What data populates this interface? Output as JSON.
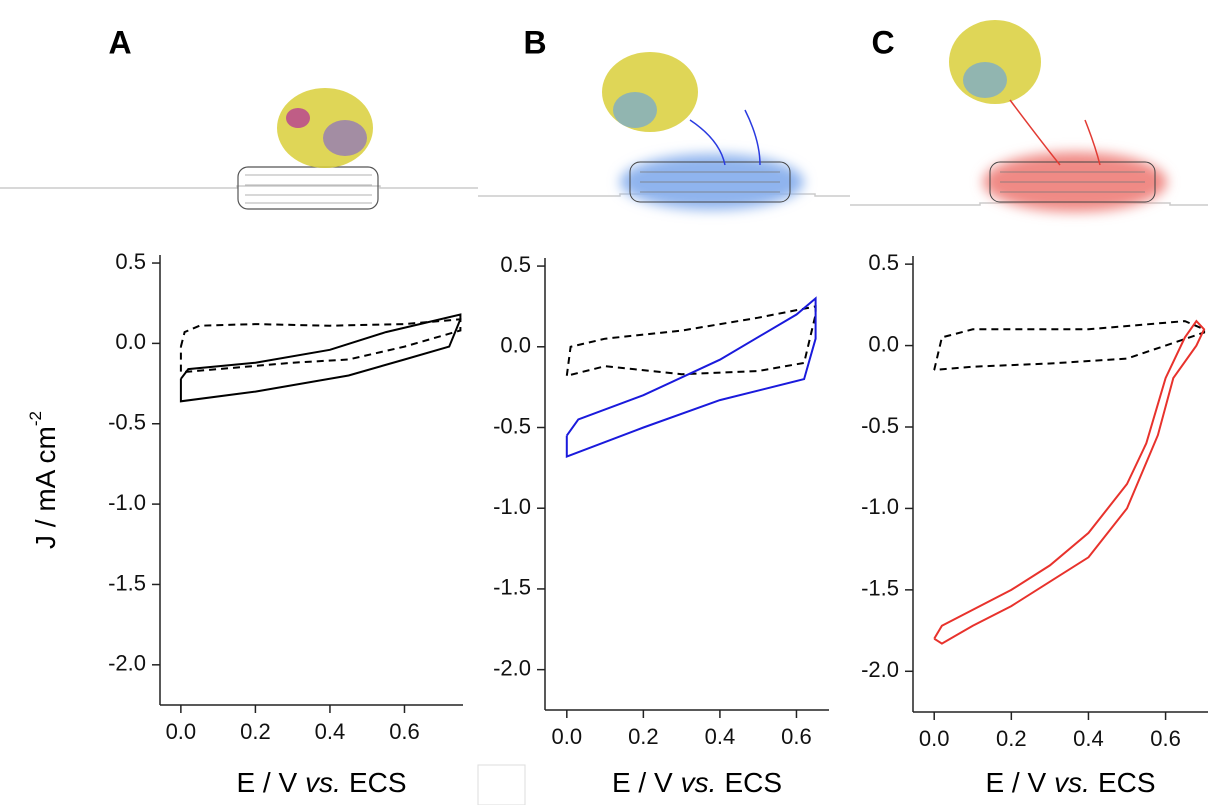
{
  "chart_data": [
    {
      "type": "line",
      "label": "A",
      "y_label": "J / mA cm",
      "y_label_sup": "-2",
      "x_label": [
        "E / V",
        "vs.",
        "ECS"
      ],
      "xlim": [
        -0.056,
        0.757
      ],
      "ylim": [
        -2.25,
        0.55
      ],
      "xticks": [
        {
          "value": 0,
          "label": "0.0"
        },
        0.2,
        0.4,
        0.6
      ],
      "yticks": [
        0.5,
        {
          "value": 0,
          "label": "0.0"
        },
        -0.5,
        {
          "value": -1,
          "label": "-1.0"
        },
        -1.5,
        {
          "value": -2,
          "label": "-2.0"
        }
      ],
      "series": [
        {
          "color": "#000000",
          "line_style": "dashed",
          "x": [
            0,
            0.01,
            0.05,
            0.2,
            0.4,
            0.6,
            0.75,
            0.75,
            0.6,
            0.45,
            0.3,
            0.1,
            0,
            0
          ],
          "values": [
            -0.02,
            0.07,
            0.11,
            0.12,
            0.11,
            0.12,
            0.15,
            0.08,
            -0.02,
            -0.1,
            -0.12,
            -0.16,
            -0.18,
            -0.02
          ]
        },
        {
          "color": "#000000",
          "line_style": "solid",
          "x": [
            0,
            0.02,
            0.2,
            0.4,
            0.55,
            0.75,
            0.75,
            0.72,
            0.6,
            0.45,
            0.2,
            0,
            0
          ],
          "values": [
            -0.22,
            -0.16,
            -0.12,
            -0.04,
            0.07,
            0.18,
            0.15,
            -0.02,
            -0.1,
            -0.2,
            -0.3,
            -0.36,
            -0.22
          ]
        }
      ]
    },
    {
      "type": "line",
      "label": "B",
      "x_label": [
        "E / V",
        "vs.",
        "ECS"
      ],
      "xlim": [
        -0.057,
        0.685
      ],
      "ylim": [
        -2.25,
        0.55
      ],
      "xticks": [
        {
          "value": 0,
          "label": "0.0"
        },
        0.2,
        0.4,
        0.6
      ],
      "yticks": [
        0.5,
        {
          "value": 0,
          "label": "0.0"
        },
        -0.5,
        {
          "value": -1,
          "label": "-1.0"
        },
        -1.5,
        {
          "value": -2,
          "label": "-2.0"
        }
      ],
      "series": [
        {
          "color": "#000000",
          "line_style": "dashed",
          "x": [
            0,
            0.01,
            0.1,
            0.3,
            0.5,
            0.65,
            0.65,
            0.62,
            0.5,
            0.3,
            0.1,
            0
          ],
          "values": [
            -0.18,
            0.0,
            0.05,
            0.1,
            0.18,
            0.25,
            0.2,
            -0.1,
            -0.15,
            -0.17,
            -0.12,
            -0.18
          ]
        },
        {
          "color": "#1a1adc",
          "line_style": "solid",
          "x": [
            0,
            0.03,
            0.2,
            0.4,
            0.6,
            0.65,
            0.65,
            0.62,
            0.4,
            0.2,
            0,
            0
          ],
          "values": [
            -0.55,
            -0.45,
            -0.3,
            -0.08,
            0.2,
            0.3,
            0.05,
            -0.2,
            -0.33,
            -0.5,
            -0.68,
            -0.55
          ]
        }
      ]
    },
    {
      "type": "line",
      "label": "C",
      "x_label": [
        "E / V",
        "vs.",
        "ECS"
      ],
      "xlim": [
        -0.055,
        0.71
      ],
      "ylim": [
        -2.25,
        0.55
      ],
      "xticks": [
        {
          "value": 0,
          "label": "0.0"
        },
        0.2,
        0.4,
        0.6
      ],
      "yticks": [
        0.5,
        {
          "value": 0,
          "label": "0.0"
        },
        -0.5,
        {
          "value": -1,
          "label": "-1.0"
        },
        -1.5,
        {
          "value": -2,
          "label": "-2.0"
        }
      ],
      "series": [
        {
          "color": "#000000",
          "line_style": "dashed",
          "x": [
            0,
            0.02,
            0.1,
            0.4,
            0.65,
            0.7,
            0.7,
            0.5,
            0.3,
            0.1,
            0
          ],
          "values": [
            -0.15,
            0.05,
            0.1,
            0.1,
            0.15,
            0.1,
            0.08,
            -0.08,
            -0.11,
            -0.13,
            -0.15
          ]
        },
        {
          "color": "#e8322c",
          "line_style": "solid",
          "x": [
            0,
            0.02,
            0.2,
            0.3,
            0.4,
            0.5,
            0.55,
            0.6,
            0.65,
            0.68,
            0.7,
            0.68,
            0.62,
            0.58,
            0.5,
            0.4,
            0.3,
            0.2,
            0.1,
            0.02,
            0
          ],
          "values": [
            -1.8,
            -1.72,
            -1.5,
            -1.35,
            -1.15,
            -0.85,
            -0.6,
            -0.2,
            0.05,
            0.15,
            0.1,
            0,
            -0.2,
            -0.55,
            -1.0,
            -1.3,
            -1.45,
            -1.6,
            -1.72,
            -1.83,
            -1.8
          ]
        }
      ]
    }
  ]
}
